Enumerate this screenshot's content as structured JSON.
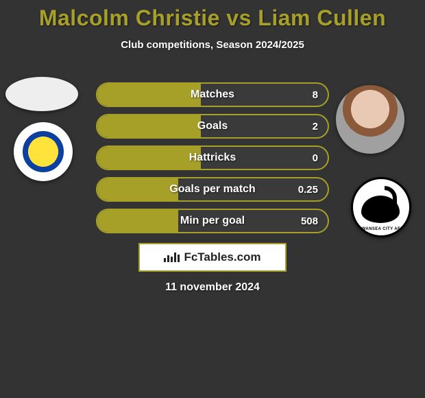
{
  "title": "Malcolm Christie vs Liam Cullen",
  "subtitle": "Club competitions, Season 2024/2025",
  "date": "11 november 2024",
  "brand": {
    "label": "FcTables.com"
  },
  "colors": {
    "accent": "#a6a029",
    "background": "#333333",
    "text": "#ffffff",
    "bar_border": "#a6a029",
    "bar_fill": "#a6a029",
    "panel_bg": "#ffffff"
  },
  "left": {
    "player_name": "Malcolm Christie",
    "club": "Leeds United"
  },
  "right": {
    "player_name": "Liam Cullen",
    "club": "Swansea City AFC"
  },
  "stats": [
    {
      "label": "Matches",
      "value": "8",
      "fill_pct": 45
    },
    {
      "label": "Goals",
      "value": "2",
      "fill_pct": 45
    },
    {
      "label": "Hattricks",
      "value": "0",
      "fill_pct": 45
    },
    {
      "label": "Goals per match",
      "value": "0.25",
      "fill_pct": 35
    },
    {
      "label": "Min per goal",
      "value": "508",
      "fill_pct": 35
    }
  ]
}
